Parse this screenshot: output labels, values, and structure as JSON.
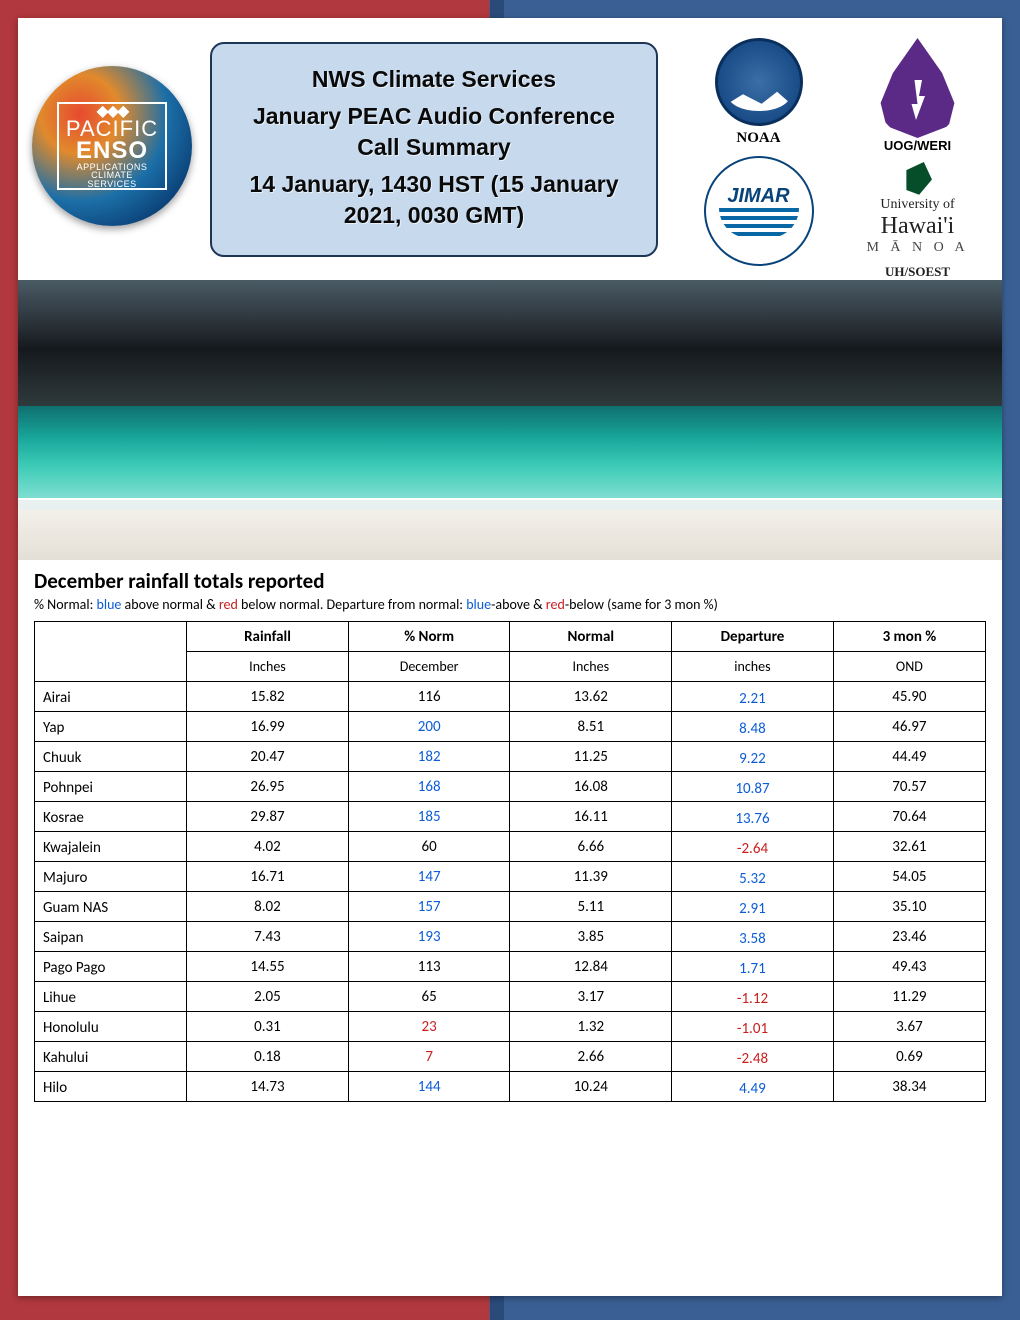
{
  "header": {
    "title_lines": [
      "NWS Climate Services",
      "January PEAC  Audio Conference Call   Summary",
      "14 January, 1430 HST (15 January 2021, 0030 GMT)"
    ],
    "peac_logo": {
      "line1": "PACIFIC",
      "line2": "ENSO",
      "line3": "APPLICATIONS",
      "line4": "CLIMATE",
      "line5": "SERVICES"
    },
    "logos": {
      "noaa": "NOAA",
      "weri": "UOG/WERI",
      "jimar": "JIMAR",
      "uh_university": "University of",
      "uh_hawaii": "Hawai'i",
      "uh_manoa": "M Ā N O A",
      "uh_soest": "UH/SOEST"
    }
  },
  "section_title": "December rainfall totals reported",
  "legend_pre": "% Normal: ",
  "legend_blue1": "blue",
  "legend_mid1": " above normal & ",
  "legend_red1": "red",
  "legend_mid2": " below normal. Departure from normal: ",
  "legend_blue2": "blue",
  "legend_mid3": "-above & ",
  "legend_red2": "red",
  "legend_post": "-below (same for 3 mon %)",
  "columns": {
    "c0": "",
    "c1": "Rainfall",
    "c1s": "Inches",
    "c2": "% Norm",
    "c2s": "December",
    "c3": "Normal",
    "c3s": "Inches",
    "c4": "Departure",
    "c4s": "inches",
    "c5": "3 mon %",
    "c5s": "OND"
  },
  "rows": [
    {
      "station": "Airai",
      "rain": "15.82",
      "pct": "116",
      "pct_c": "",
      "normal": "13.62",
      "dep": "2.21",
      "dep_c": "blue",
      "mon3": "45.90"
    },
    {
      "station": "Yap",
      "rain": "16.99",
      "pct": "200",
      "pct_c": "blue",
      "normal": "8.51",
      "dep": "8.48",
      "dep_c": "blue",
      "mon3": "46.97"
    },
    {
      "station": "Chuuk",
      "rain": "20.47",
      "pct": "182",
      "pct_c": "blue",
      "normal": "11.25",
      "dep": "9.22",
      "dep_c": "blue",
      "mon3": "44.49"
    },
    {
      "station": "Pohnpei",
      "rain": "26.95",
      "pct": "168",
      "pct_c": "blue",
      "normal": "16.08",
      "dep": "10.87",
      "dep_c": "blue",
      "mon3": "70.57"
    },
    {
      "station": "Kosrae",
      "rain": "29.87",
      "pct": "185",
      "pct_c": "blue",
      "normal": "16.11",
      "dep": "13.76",
      "dep_c": "blue",
      "mon3": "70.64"
    },
    {
      "station": "Kwajalein",
      "rain": "4.02",
      "pct": "60",
      "pct_c": "",
      "normal": "6.66",
      "dep": "-2.64",
      "dep_c": "red",
      "mon3": "32.61"
    },
    {
      "station": "Majuro",
      "rain": "16.71",
      "pct": "147",
      "pct_c": "blue",
      "normal": "11.39",
      "dep": "5.32",
      "dep_c": "blue",
      "mon3": "54.05"
    },
    {
      "station": "Guam NAS",
      "rain": "8.02",
      "pct": "157",
      "pct_c": "blue",
      "normal": "5.11",
      "dep": "2.91",
      "dep_c": "blue",
      "mon3": "35.10"
    },
    {
      "station": "Saipan",
      "rain": "7.43",
      "pct": "193",
      "pct_c": "blue",
      "normal": "3.85",
      "dep": "3.58",
      "dep_c": "blue",
      "mon3": "23.46"
    },
    {
      "station": "Pago Pago",
      "rain": "14.55",
      "pct": "113",
      "pct_c": "",
      "normal": "12.84",
      "dep": "1.71",
      "dep_c": "blue",
      "mon3": "49.43"
    },
    {
      "station": "Lihue",
      "rain": "2.05",
      "pct": "65",
      "pct_c": "",
      "normal": "3.17",
      "dep": "-1.12",
      "dep_c": "red",
      "mon3": "11.29"
    },
    {
      "station": "Honolulu",
      "rain": "0.31",
      "pct": "23",
      "pct_c": "red",
      "normal": "1.32",
      "dep": "-1.01",
      "dep_c": "red",
      "mon3": "3.67"
    },
    {
      "station": "Kahului",
      "rain": "0.18",
      "pct": "7",
      "pct_c": "red",
      "normal": "2.66",
      "dep": "-2.48",
      "dep_c": "red",
      "mon3": "0.69"
    },
    {
      "station": "Hilo",
      "rain": "14.73",
      "pct": "144",
      "pct_c": "blue",
      "normal": "10.24",
      "dep": "4.49",
      "dep_c": "blue",
      "mon3": "38.34"
    }
  ],
  "style": {
    "frame_left_color": "#b0383e",
    "frame_right_color": "#3a5f94",
    "title_box_bg": "#c6d9ed",
    "title_box_border": "#1d3557",
    "value_blue": "#0b5cd6",
    "value_red": "#c81e1e"
  }
}
